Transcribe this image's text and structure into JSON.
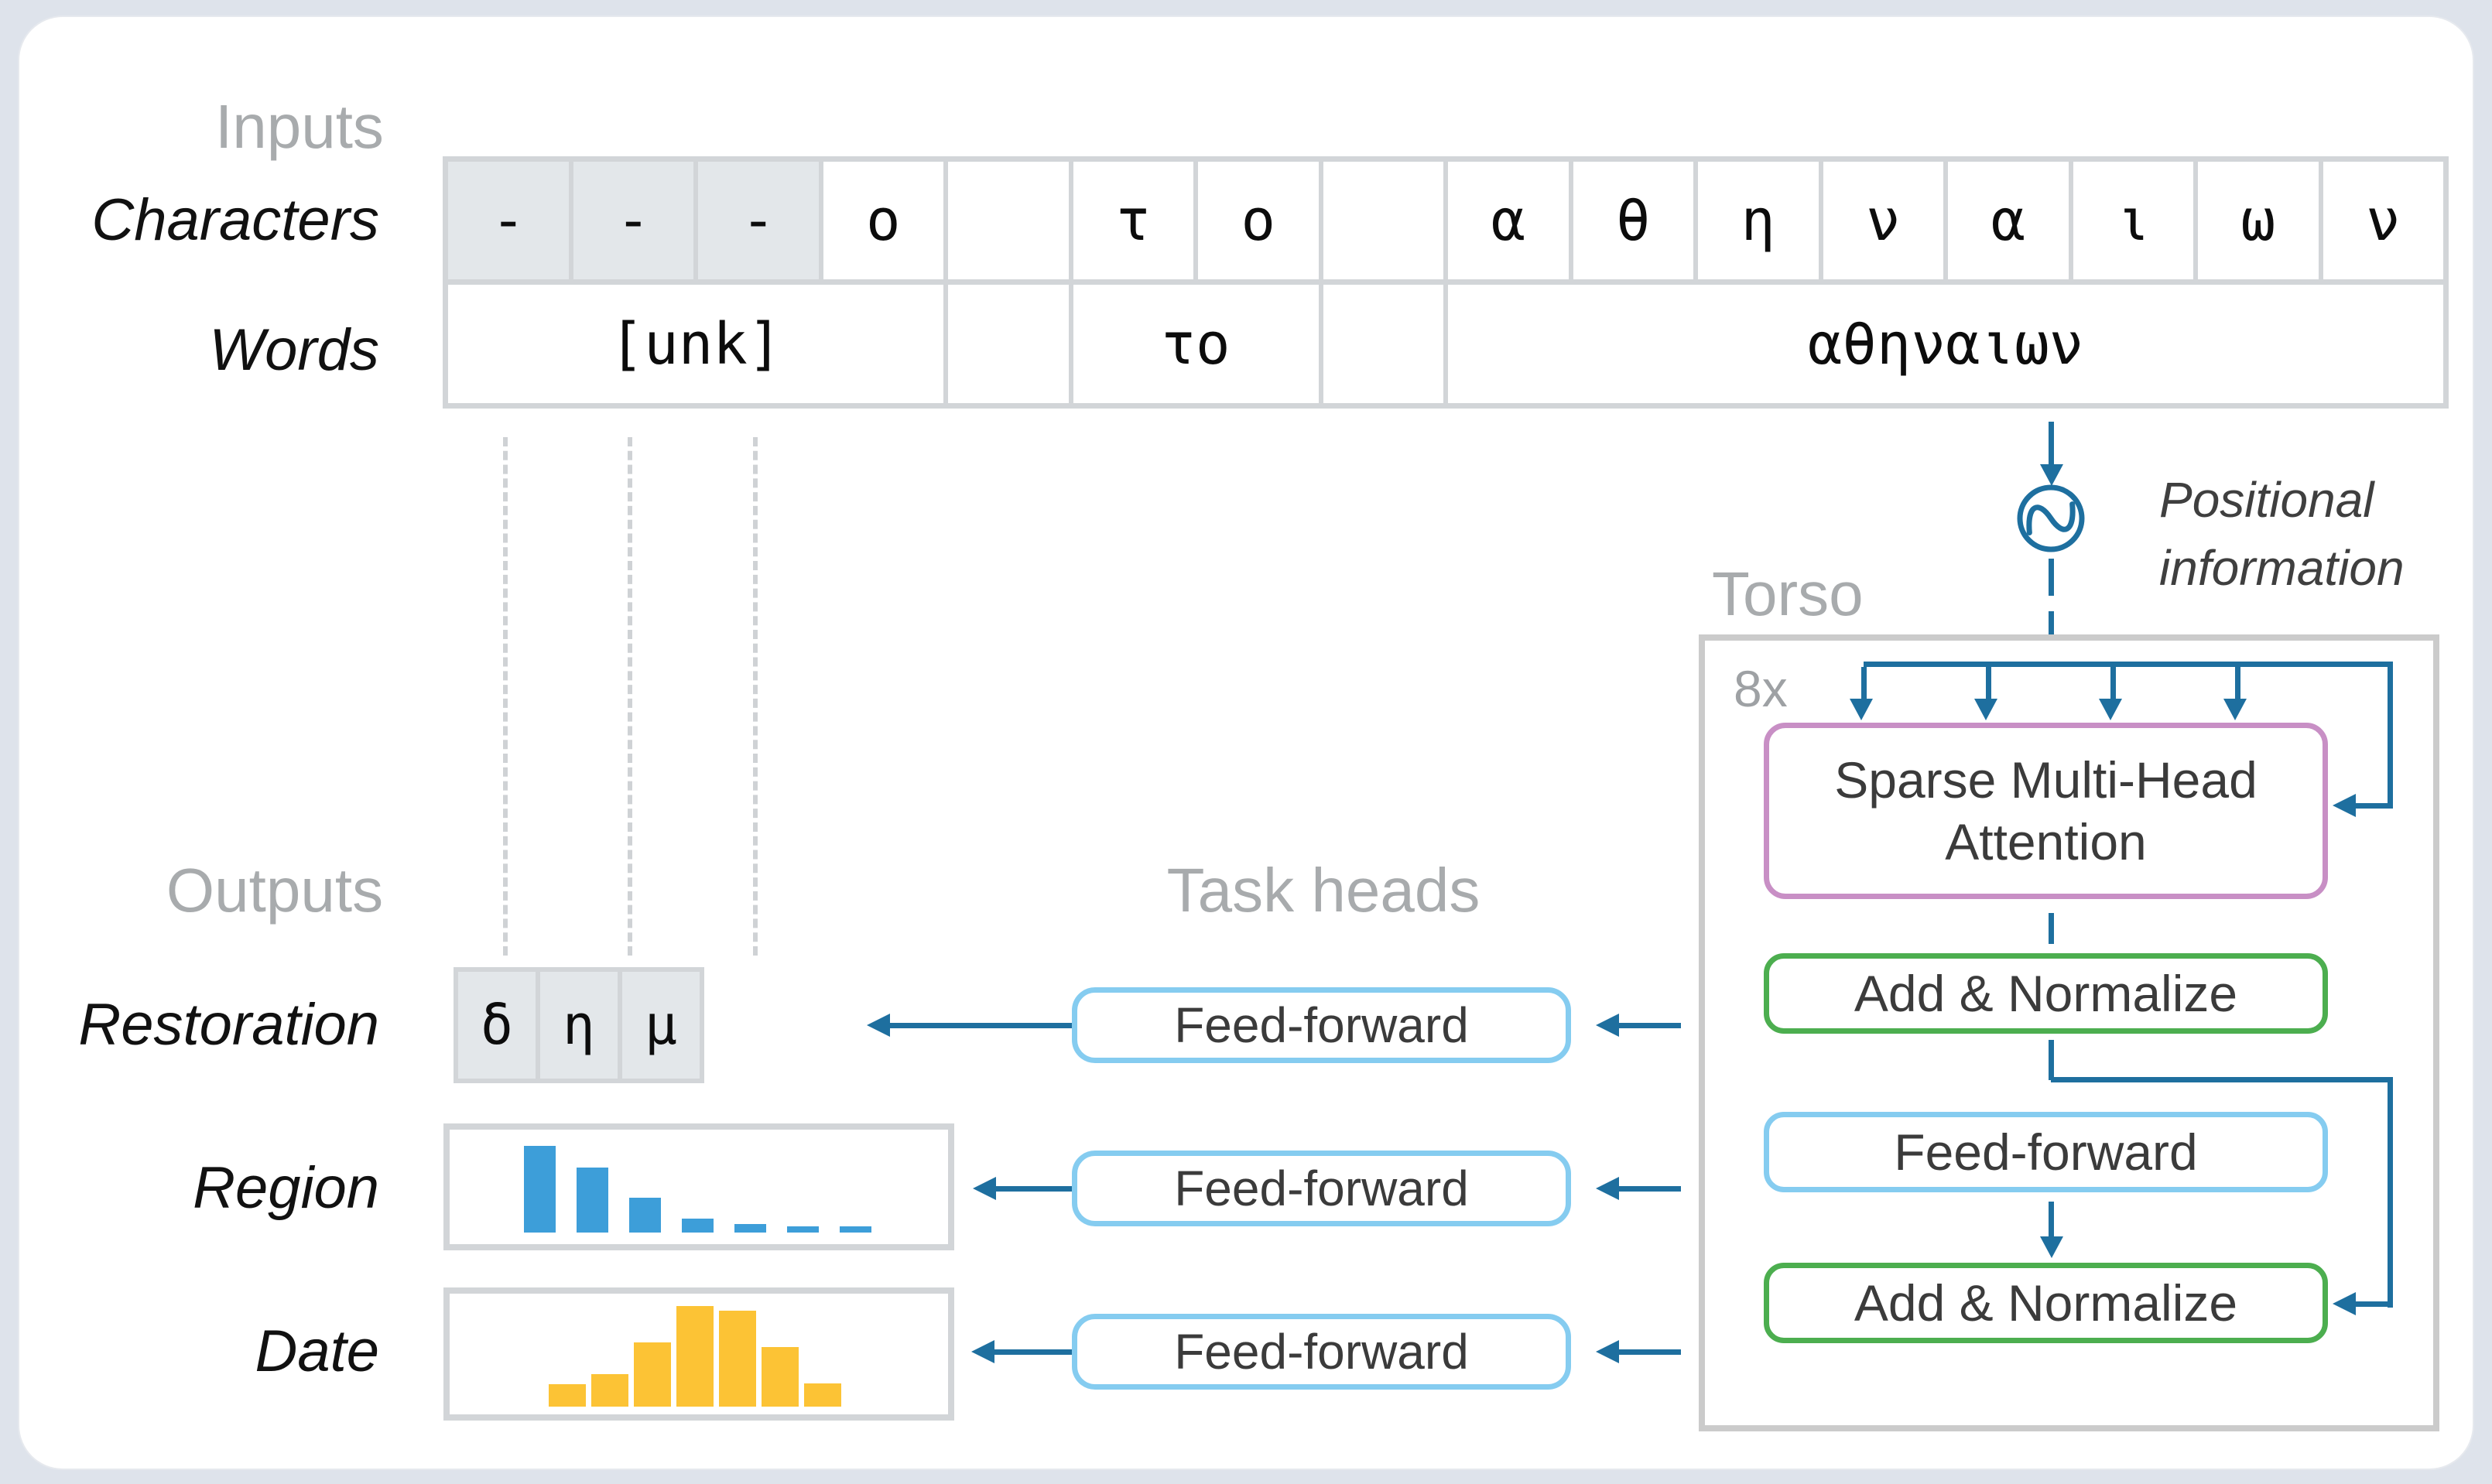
{
  "colors": {
    "accent_blue": "#1e6f9f",
    "purple": "#c88fc5",
    "green": "#4cae4f",
    "light_blue": "#85ccf0",
    "bar_blue": "#3d9ed9",
    "bar_yellow": "#fcc335",
    "gray_label": "#a8abad",
    "grid_line": "#d2d5d8",
    "cell_gray": "#e3e7ea",
    "background": "#dee3eb"
  },
  "inputs": {
    "section_label": "Inputs",
    "characters_label": "Characters",
    "words_label": "Words",
    "characters": [
      {
        "glyph": "-",
        "masked": true
      },
      {
        "glyph": "-",
        "masked": true
      },
      {
        "glyph": "-",
        "masked": true
      },
      {
        "glyph": "ο",
        "masked": false
      },
      {
        "glyph": "",
        "masked": false
      },
      {
        "glyph": "τ",
        "masked": false
      },
      {
        "glyph": "ο",
        "masked": false
      },
      {
        "glyph": "",
        "masked": false
      },
      {
        "glyph": "α",
        "masked": false
      },
      {
        "glyph": "θ",
        "masked": false
      },
      {
        "glyph": "η",
        "masked": false
      },
      {
        "glyph": "ν",
        "masked": false
      },
      {
        "glyph": "α",
        "masked": false
      },
      {
        "glyph": "ι",
        "masked": false
      },
      {
        "glyph": "ω",
        "masked": false
      },
      {
        "glyph": "ν",
        "masked": false
      }
    ],
    "words": [
      {
        "text": "[unk]",
        "span": 4
      },
      {
        "text": "",
        "span": 1
      },
      {
        "text": "το",
        "span": 2
      },
      {
        "text": "",
        "span": 1
      },
      {
        "text": "αθηναιων",
        "span": 8
      }
    ]
  },
  "positional": {
    "line1": "Positional",
    "line2": "information",
    "icon": "sine-wave-circle-icon"
  },
  "torso": {
    "section_label": "Torso",
    "repeat_label": "8x",
    "attention_line1": "Sparse Multi-Head",
    "attention_line2": "Attention",
    "add_norm_1": "Add & Normalize",
    "feed_forward": "Feed-forward",
    "add_norm_2": "Add & Normalize"
  },
  "task_heads": {
    "section_label": "Task heads",
    "boxes": [
      "Feed-forward",
      "Feed-forward",
      "Feed-forward"
    ]
  },
  "outputs": {
    "section_label": "Outputs",
    "restoration_label": "Restoration",
    "restoration_tokens": [
      "δ",
      "η",
      "μ"
    ],
    "region_label": "Region",
    "date_label": "Date"
  },
  "chart_data": [
    {
      "type": "bar",
      "title": "Region prediction distribution",
      "values": [
        1.0,
        0.75,
        0.4,
        0.16,
        0.1,
        0.07,
        0.07
      ],
      "color": "#3d9ed9",
      "xlabel": "",
      "ylabel": "",
      "grid": false,
      "legend": "none"
    },
    {
      "type": "bar",
      "title": "Date prediction distribution",
      "values": [
        0.22,
        0.32,
        0.64,
        1.0,
        0.95,
        0.59,
        0.23
      ],
      "color": "#fcc335",
      "xlabel": "",
      "ylabel": "",
      "grid": false,
      "legend": "none"
    }
  ]
}
